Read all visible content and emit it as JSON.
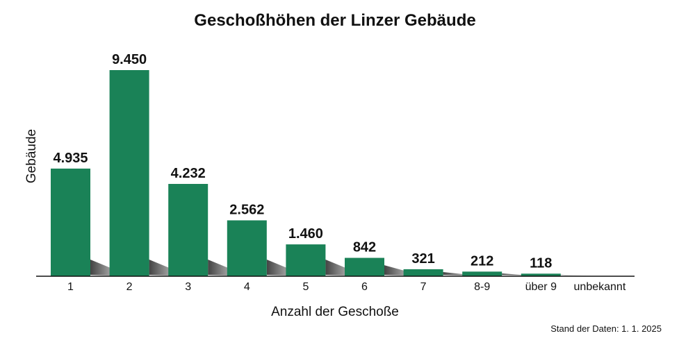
{
  "chart_data": {
    "type": "bar",
    "title": "Geschoßhöhen der Linzer Gebäude",
    "xlabel": "Anzahl der Geschoße",
    "ylabel": "Gebäude",
    "categories": [
      "1",
      "2",
      "3",
      "4",
      "5",
      "6",
      "7",
      "8-9",
      "über 9",
      "unbekannt"
    ],
    "values": [
      4935,
      9450,
      4232,
      2562,
      1460,
      842,
      321,
      212,
      118,
      0
    ],
    "value_labels": [
      "4.935",
      "9.450",
      "4.232",
      "2.562",
      "1.460",
      "842",
      "321",
      "212",
      "118",
      ""
    ],
    "ylim": [
      0,
      9450
    ],
    "grid": false,
    "legend": "none",
    "bar_color": "#1a8257",
    "footnote": "Stand der Daten: 1. 1. 2025"
  }
}
